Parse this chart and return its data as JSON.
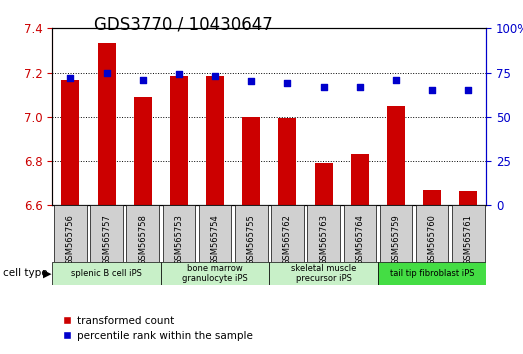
{
  "title": "GDS3770 / 10430647",
  "samples": [
    "GSM565756",
    "GSM565757",
    "GSM565758",
    "GSM565753",
    "GSM565754",
    "GSM565755",
    "GSM565762",
    "GSM565763",
    "GSM565764",
    "GSM565759",
    "GSM565760",
    "GSM565761"
  ],
  "bar_values": [
    7.165,
    7.335,
    7.09,
    7.185,
    7.185,
    7.0,
    6.995,
    6.79,
    6.83,
    7.05,
    6.67,
    6.665
  ],
  "dot_values": [
    72,
    75,
    71,
    74,
    73,
    70,
    69,
    67,
    67,
    71,
    65,
    65
  ],
  "ylim_left": [
    6.6,
    7.4
  ],
  "ylim_right": [
    0,
    100
  ],
  "yticks_left": [
    6.6,
    6.8,
    7.0,
    7.2,
    7.4
  ],
  "yticks_right": [
    0,
    25,
    50,
    75,
    100
  ],
  "ytick_right_labels": [
    "0",
    "25",
    "50",
    "75",
    "100%"
  ],
  "bar_color": "#cc0000",
  "dot_color": "#0000cc",
  "bar_bottom": 6.6,
  "cell_groups": [
    {
      "label": "splenic B cell iPS",
      "start": 0,
      "end": 3,
      "color": "#c8f0c8"
    },
    {
      "label": "bone marrow\ngranulocyte iPS",
      "start": 3,
      "end": 6,
      "color": "#c8f0c8"
    },
    {
      "label": "skeletal muscle\nprecursor iPS",
      "start": 6,
      "end": 9,
      "color": "#c8f0c8"
    },
    {
      "label": "tail tip fibroblast iPS",
      "start": 9,
      "end": 12,
      "color": "#44dd44"
    }
  ],
  "legend_bar_label": "transformed count",
  "legend_dot_label": "percentile rank within the sample",
  "tick_label_color_left": "#cc0000",
  "tick_label_color_right": "#0000cc",
  "cell_type_label": "cell type",
  "title_fontsize": 12,
  "tick_fontsize": 8.5
}
